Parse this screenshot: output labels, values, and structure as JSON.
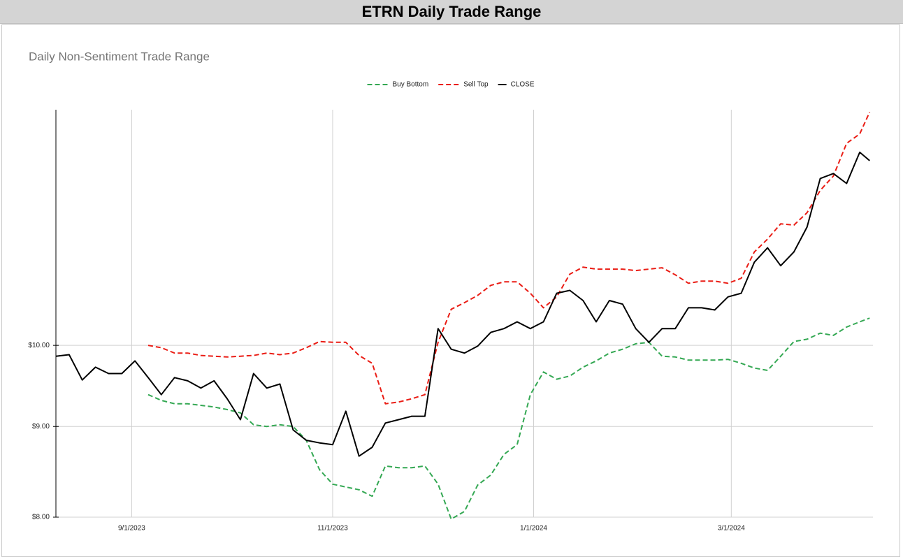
{
  "header": {
    "title": "ETRN Daily Trade Range"
  },
  "chart_data": {
    "type": "line",
    "title": "Daily Non-Sentiment Trade Range",
    "log_scale": true,
    "grid": true,
    "legend": "top",
    "x": [
      "8/9/2023",
      "8/13/2023",
      "8/17/2023",
      "8/21/2023",
      "8/25/2023",
      "8/29/2023",
      "9/2/2023",
      "9/6/2023",
      "9/10/2023",
      "9/14/2023",
      "9/18/2023",
      "9/22/2023",
      "9/26/2023",
      "9/30/2023",
      "10/4/2023",
      "10/8/2023",
      "10/12/2023",
      "10/16/2023",
      "10/20/2023",
      "10/24/2023",
      "10/28/2023",
      "11/1/2023",
      "11/5/2023",
      "11/9/2023",
      "11/13/2023",
      "11/17/2023",
      "11/21/2023",
      "11/25/2023",
      "11/29/2023",
      "12/3/2023",
      "12/7/2023",
      "12/11/2023",
      "12/15/2023",
      "12/19/2023",
      "12/23/2023",
      "12/27/2023",
      "12/31/2023",
      "1/4/2024",
      "1/8/2024",
      "1/12/2024",
      "1/16/2024",
      "1/20/2024",
      "1/24/2024",
      "1/28/2024",
      "2/1/2024",
      "2/5/2024",
      "2/9/2024",
      "2/13/2024",
      "2/17/2024",
      "2/21/2024",
      "2/25/2024",
      "2/29/2024",
      "3/4/2024",
      "3/8/2024",
      "3/12/2024",
      "3/16/2024",
      "3/20/2024",
      "3/24/2024",
      "3/28/2024",
      "4/1/2024",
      "4/5/2024",
      "4/9/2024",
      "4/12/2024"
    ],
    "series": [
      {
        "name": "Buy Bottom",
        "color": "#34a853",
        "dashed": true,
        "values": [
          null,
          null,
          null,
          null,
          null,
          null,
          null,
          9.38,
          9.31,
          9.27,
          9.27,
          9.25,
          9.23,
          9.2,
          9.16,
          9.02,
          9.0,
          9.02,
          9.0,
          8.84,
          8.51,
          8.35,
          8.32,
          8.29,
          8.22,
          8.55,
          8.53,
          8.53,
          8.55,
          8.35,
          7.98,
          8.06,
          8.34,
          8.45,
          8.68,
          8.79,
          9.38,
          9.66,
          9.57,
          9.61,
          9.72,
          9.8,
          9.9,
          9.95,
          10.02,
          10.04,
          9.86,
          9.85,
          9.81,
          9.81,
          9.81,
          9.82,
          9.77,
          9.71,
          9.68,
          9.86,
          10.05,
          10.08,
          10.16,
          10.13,
          10.24,
          10.31,
          10.36
        ]
      },
      {
        "name": "Sell Top",
        "color": "#ea1d15",
        "dashed": true,
        "values": [
          null,
          null,
          null,
          null,
          null,
          null,
          null,
          10.0,
          9.97,
          9.9,
          9.9,
          9.87,
          9.86,
          9.85,
          9.86,
          9.87,
          9.9,
          9.88,
          9.9,
          9.97,
          10.05,
          10.04,
          10.04,
          9.87,
          9.77,
          9.27,
          9.29,
          9.33,
          9.38,
          10.04,
          10.48,
          10.57,
          10.67,
          10.81,
          10.86,
          10.86,
          10.7,
          10.5,
          10.65,
          10.97,
          11.07,
          11.04,
          11.04,
          11.04,
          11.02,
          11.04,
          11.06,
          10.96,
          10.84,
          10.87,
          10.87,
          10.84,
          10.91,
          11.29,
          11.48,
          11.71,
          11.69,
          11.88,
          12.23,
          12.46,
          13.0,
          13.16,
          13.54
        ]
      },
      {
        "name": "CLOSE",
        "color": "#000000",
        "dashed": false,
        "values": [
          9.86,
          9.88,
          9.56,
          9.72,
          9.64,
          9.64,
          9.8,
          9.59,
          9.38,
          9.59,
          9.55,
          9.46,
          9.55,
          9.33,
          9.08,
          9.64,
          9.46,
          9.51,
          8.96,
          8.84,
          8.81,
          8.79,
          9.18,
          8.66,
          8.76,
          9.04,
          9.08,
          9.12,
          9.12,
          10.22,
          9.95,
          9.9,
          9.99,
          10.17,
          10.22,
          10.31,
          10.22,
          10.31,
          10.7,
          10.74,
          10.6,
          10.31,
          10.6,
          10.55,
          10.22,
          10.04,
          10.22,
          10.22,
          10.5,
          10.5,
          10.47,
          10.65,
          10.7,
          11.14,
          11.35,
          11.09,
          11.29,
          11.66,
          12.42,
          12.5,
          12.34,
          12.85,
          12.71
        ]
      }
    ],
    "xlim": [
      "8/9/2023",
      "4/13/2024"
    ],
    "xticks": [
      "9/1/2023",
      "11/1/2023",
      "1/1/2024",
      "3/1/2024"
    ],
    "ylim": [
      8,
      13.58
    ],
    "yticks": [
      {
        "value": 8,
        "label": "$8.00"
      },
      {
        "value": 9,
        "label": "$9.00"
      },
      {
        "value": 10,
        "label": "$10.00"
      }
    ]
  }
}
